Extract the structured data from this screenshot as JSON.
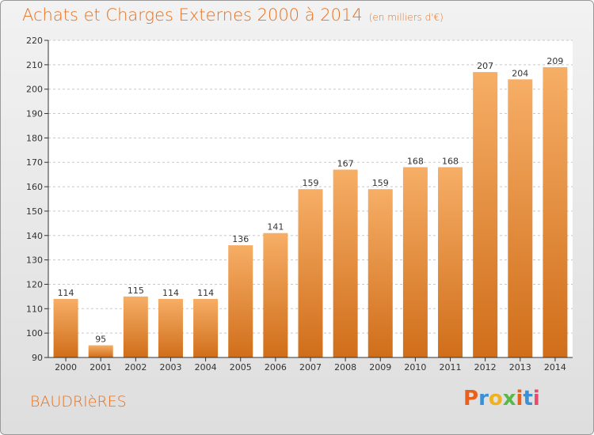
{
  "header": {
    "title": "Achats et Charges Externes 2000 à 2014",
    "unit": "(en milliers d'€)"
  },
  "footer": {
    "commune": "BAUDRIèRES",
    "logo_letters": [
      "P",
      "r",
      "o",
      "x",
      "i",
      "t",
      "i"
    ],
    "logo_colors": [
      "#e8601c",
      "#3a8fd6",
      "#f0b020",
      "#59b84a",
      "#e8601c",
      "#3a8fd6",
      "#e84a6c"
    ]
  },
  "colors": {
    "accent": "#e8701c",
    "bar_light": "#f6ae66",
    "bar_dark": "#d06e1a"
  },
  "chart_data": {
    "type": "bar",
    "categories": [
      "2000",
      "2001",
      "2002",
      "2003",
      "2004",
      "2005",
      "2006",
      "2007",
      "2008",
      "2009",
      "2010",
      "2011",
      "2012",
      "2013",
      "2014"
    ],
    "values": [
      114,
      95,
      115,
      114,
      114,
      136,
      141,
      159,
      167,
      159,
      168,
      168,
      207,
      204,
      209
    ],
    "yticks": [
      90,
      100,
      110,
      120,
      130,
      140,
      150,
      160,
      170,
      180,
      190,
      200,
      210,
      220
    ],
    "ylim": [
      90,
      220
    ],
    "grid": "horizontal-dashed",
    "legend": "none"
  }
}
